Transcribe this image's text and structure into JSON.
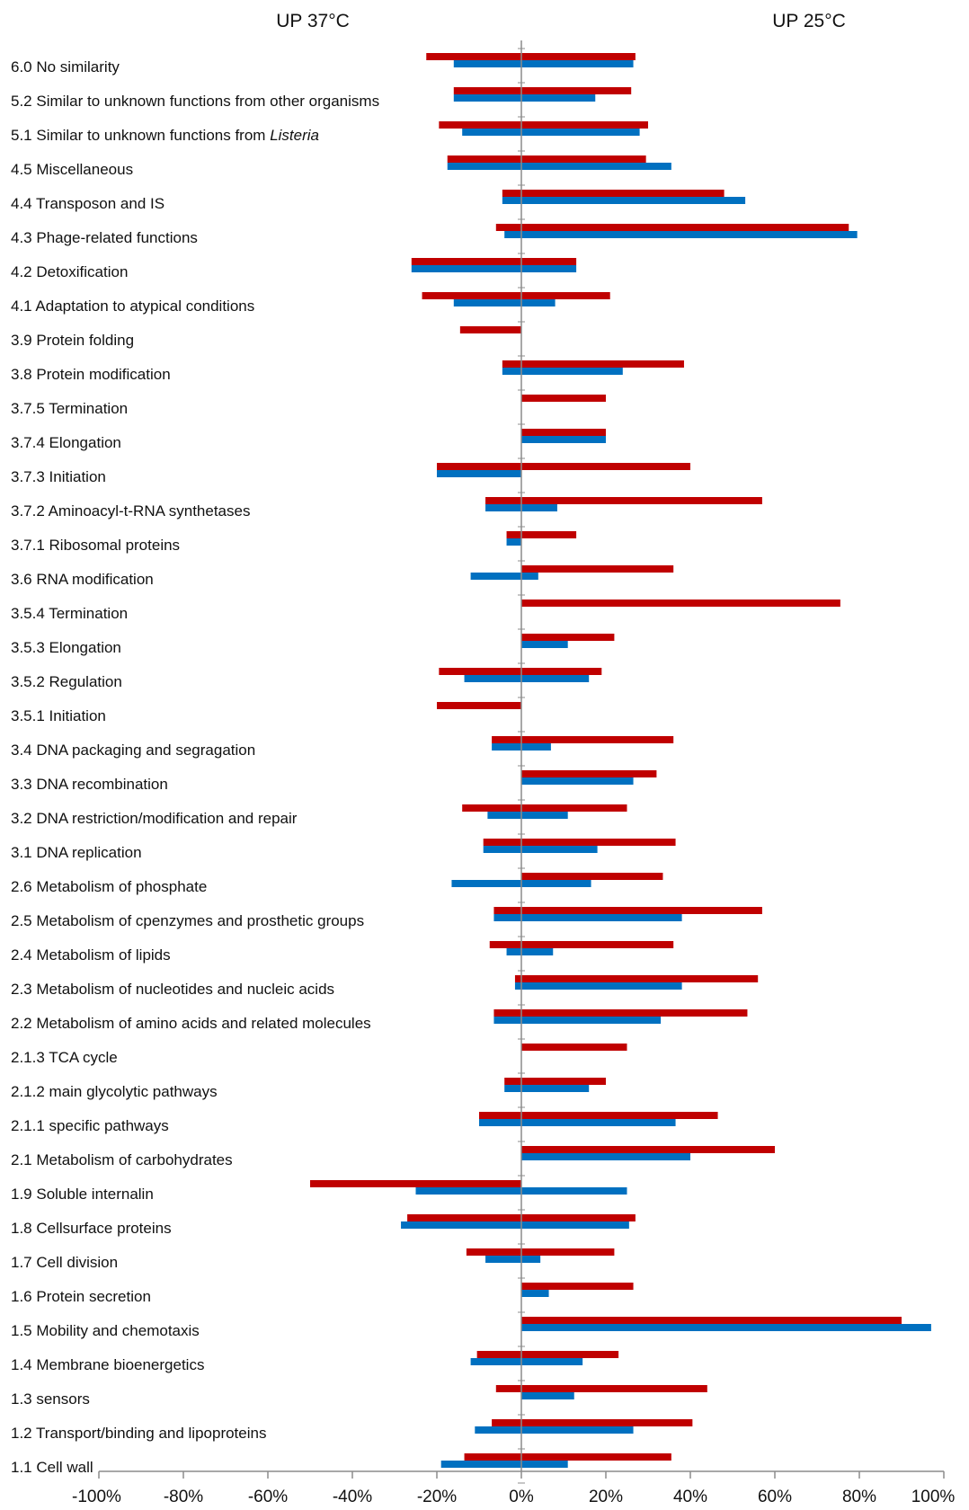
{
  "chart_data": {
    "type": "bar",
    "orientation": "horizontal",
    "headers": {
      "left": "UP 37°C",
      "right": "UP 25°C"
    },
    "xlim": [
      -100,
      100
    ],
    "x_ticks": [
      "-100%",
      "-80%",
      "-60%",
      "-40%",
      "-20%",
      "0%",
      "20%",
      "40%",
      "60%",
      "80%",
      "100%"
    ],
    "colors": {
      "series_red": "#c00000",
      "series_blue": "#0070c0"
    },
    "grid": false,
    "legend": "none",
    "categories": [
      {
        "prefix": "6.0 No similarity",
        "italic": ""
      },
      {
        "prefix": "5.2 Similar to unknown functions from other organisms",
        "italic": ""
      },
      {
        "prefix": "5.1 Similar to unknown functions from ",
        "italic": "Listeria"
      },
      {
        "prefix": "4.5 Miscellaneous",
        "italic": ""
      },
      {
        "prefix": "4.4 Transposon and IS",
        "italic": ""
      },
      {
        "prefix": "4.3 Phage-related functions",
        "italic": ""
      },
      {
        "prefix": "4.2 Detoxification",
        "italic": ""
      },
      {
        "prefix": "4.1 Adaptation to atypical conditions",
        "italic": ""
      },
      {
        "prefix": "3.9 Protein folding",
        "italic": ""
      },
      {
        "prefix": "3.8 Protein modification",
        "italic": ""
      },
      {
        "prefix": "3.7.5 Termination",
        "italic": ""
      },
      {
        "prefix": "3.7.4 Elongation",
        "italic": ""
      },
      {
        "prefix": "3.7.3 Initiation",
        "italic": ""
      },
      {
        "prefix": "3.7.2 Aminoacyl-t-RNA synthetases",
        "italic": ""
      },
      {
        "prefix": "3.7.1 Ribosomal proteins",
        "italic": ""
      },
      {
        "prefix": "3.6 RNA modification",
        "italic": ""
      },
      {
        "prefix": "3.5.4 Termination",
        "italic": ""
      },
      {
        "prefix": "3.5.3 Elongation",
        "italic": ""
      },
      {
        "prefix": "3.5.2 Regulation",
        "italic": ""
      },
      {
        "prefix": "3.5.1 Initiation",
        "italic": ""
      },
      {
        "prefix": "3.4 DNA packaging and segragation",
        "italic": ""
      },
      {
        "prefix": "3.3 DNA recombination",
        "italic": ""
      },
      {
        "prefix": "3.2 DNA restriction/modification and repair",
        "italic": ""
      },
      {
        "prefix": "3.1 DNA replication",
        "italic": ""
      },
      {
        "prefix": "2.6 Metabolism of phosphate",
        "italic": ""
      },
      {
        "prefix": "2.5 Metabolism of cpenzymes and prosthetic groups",
        "italic": ""
      },
      {
        "prefix": "2.4 Metabolism of lipids",
        "italic": ""
      },
      {
        "prefix": "2.3 Metabolism of nucleotides and nucleic acids",
        "italic": ""
      },
      {
        "prefix": "2.2 Metabolism of amino acids and related molecules",
        "italic": ""
      },
      {
        "prefix": "2.1.3 TCA cycle",
        "italic": ""
      },
      {
        "prefix": "2.1.2 main glycolytic pathways",
        "italic": ""
      },
      {
        "prefix": "2.1.1 specific pathways",
        "italic": ""
      },
      {
        "prefix": "2.1 Metabolism of carbohydrates",
        "italic": ""
      },
      {
        "prefix": "1.9 Soluble internalin",
        "italic": ""
      },
      {
        "prefix": "1.8 Cellsurface proteins",
        "italic": ""
      },
      {
        "prefix": "1.7 Cell division",
        "italic": ""
      },
      {
        "prefix": "1.6 Protein secretion",
        "italic": ""
      },
      {
        "prefix": "1.5 Mobility and chemotaxis",
        "italic": ""
      },
      {
        "prefix": "1.4 Membrane bioenergetics",
        "italic": ""
      },
      {
        "prefix": "1.3 sensors",
        "italic": ""
      },
      {
        "prefix": "1.2 Transport/binding and lipoproteins",
        "italic": ""
      },
      {
        "prefix": "1.1 Cell wall",
        "italic": ""
      }
    ],
    "series": [
      {
        "color": "#c00000",
        "up37": [
          -22.5,
          -16,
          -19.5,
          -17.5,
          -4.5,
          -6,
          -26,
          -23.5,
          -14.5,
          -4.5,
          0,
          0,
          -20,
          -8.5,
          -3.5,
          0,
          0,
          0,
          -19.5,
          -20,
          -7,
          0,
          -14,
          -9,
          0,
          -6.5,
          -7.5,
          -1.5,
          -6.5,
          0,
          -4,
          -10,
          0,
          -50,
          -27,
          -13,
          0,
          0,
          -10.5,
          -6,
          -7,
          -13.5
        ],
        "up25": [
          27,
          26,
          30,
          29.5,
          48,
          77.5,
          13,
          21,
          0,
          38.5,
          20,
          20,
          40,
          57,
          13,
          36,
          75.5,
          22,
          19,
          0,
          36,
          32,
          25,
          36.5,
          33.5,
          57,
          36,
          56,
          53.5,
          25,
          20,
          46.5,
          60,
          0,
          27,
          22,
          26.5,
          90,
          23,
          44,
          40.5,
          35.5
        ]
      },
      {
        "color": "#0070c0",
        "up37": [
          -16,
          -16,
          -14,
          -17.5,
          -4.5,
          -4,
          -26,
          -16,
          0,
          -4.5,
          0,
          0,
          -20,
          -8.5,
          -3.5,
          -12,
          0,
          0,
          -13.5,
          0,
          -7,
          0,
          -8,
          -9,
          -16.5,
          -6.5,
          -3.5,
          -1.5,
          -6.5,
          0,
          -4,
          -10,
          0,
          -25,
          -28.5,
          -8.5,
          0,
          0,
          -12,
          0,
          -11,
          -19
        ],
        "up25": [
          26.5,
          17.5,
          28,
          35.5,
          53,
          79.5,
          13,
          8,
          0,
          24,
          0,
          20,
          0,
          8.5,
          0,
          4,
          0,
          11,
          16,
          0,
          7,
          26.5,
          11,
          18,
          16.5,
          38,
          7.5,
          38,
          33,
          0,
          16,
          36.5,
          40,
          25,
          25.5,
          4.5,
          6.5,
          97,
          14.5,
          12.5,
          26.5,
          11
        ]
      }
    ]
  }
}
